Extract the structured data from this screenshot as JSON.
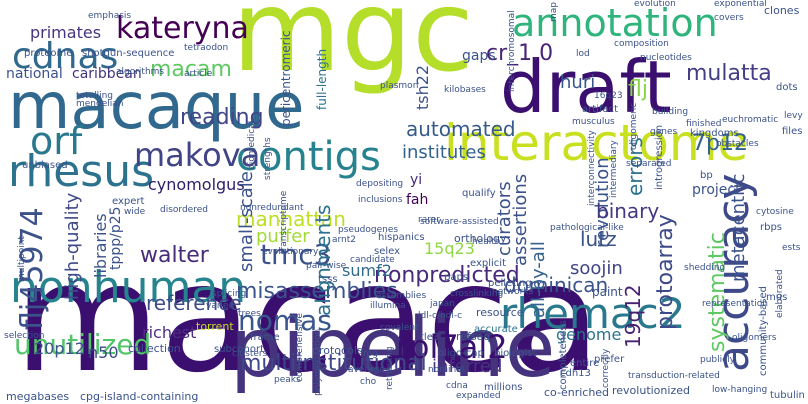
{
  "words": [
    {
      "text": "macaca",
      "color": "#3b0f70"
    },
    {
      "text": "mgc",
      "color": "#b5de2b"
    },
    {
      "text": "pipeline",
      "color": "#46337e"
    },
    {
      "text": "macaque",
      "color": "#31688e"
    },
    {
      "text": "draft",
      "color": "#3b0f70"
    },
    {
      "text": "interactome",
      "color": "#c8e020"
    },
    {
      "text": "annotation",
      "color": "#2fb47c"
    },
    {
      "text": "rhesus",
      "color": "#2c728e"
    },
    {
      "text": "nonhuman",
      "color": "#25848e"
    },
    {
      "text": "rhemac2",
      "color": "#2a788e"
    },
    {
      "text": "contigs",
      "color": "#26828e"
    },
    {
      "text": "accuracy",
      "color": "#3e4989"
    },
    {
      "text": "cdnas",
      "color": "#31688e"
    },
    {
      "text": "kateryna",
      "color": "#440154"
    },
    {
      "text": "makova",
      "color": "#414487"
    },
    {
      "text": "orf",
      "color": "#2a788e"
    },
    {
      "text": "flj45974",
      "color": "#3b528b"
    },
    {
      "text": "rpl7al2",
      "color": "#3b0f70"
    },
    {
      "text": "unutilized",
      "color": "#52c569"
    },
    {
      "text": "nomas",
      "color": "#39568c"
    },
    {
      "text": "tmc3",
      "color": "#3b528b"
    },
    {
      "text": "macam",
      "color": "#5ec962"
    },
    {
      "text": "reading",
      "color": "#404688"
    },
    {
      "text": "cr_1.0",
      "color": "#482475"
    },
    {
      "text": "huri",
      "color": "#38588c"
    },
    {
      "text": "flj",
      "color": "#86d549"
    },
    {
      "text": "mulatta",
      "color": "#433e85"
    },
    {
      "text": "multiinstitutional",
      "color": "#3f4788"
    },
    {
      "text": "misassemblies",
      "color": "#3b528b"
    },
    {
      "text": "nonpredicted",
      "color": "#482878"
    },
    {
      "text": "dominican",
      "color": "#3b528b"
    },
    {
      "text": "protoarray",
      "color": "#3e4a89"
    },
    {
      "text": "automated",
      "color": "#375a8c"
    },
    {
      "text": "institutes",
      "color": "#33628d"
    },
    {
      "text": "revolution",
      "color": "#3a548c"
    },
    {
      "text": "errors",
      "color": "#2c728e"
    },
    {
      "text": "7p12",
      "color": "#33638d"
    },
    {
      "text": "project",
      "color": "#3b528b"
    },
    {
      "text": "cynomolgus",
      "color": "#2d1e6b"
    },
    {
      "text": "manhattan",
      "color": "#bddf26"
    },
    {
      "text": "walter",
      "color": "#472c7a"
    },
    {
      "text": "reference",
      "color": "#3e4a89"
    },
    {
      "text": "richest",
      "color": "#4f2e82"
    },
    {
      "text": "alignments",
      "color": "#2c728e"
    },
    {
      "text": "small-scale",
      "color": "#3b528b"
    },
    {
      "text": "puffer",
      "color": "#a2da37"
    },
    {
      "text": "sumf2",
      "color": "#2f6b8e"
    },
    {
      "text": "15q23",
      "color": "#8fd744"
    },
    {
      "text": "binary",
      "color": "#453882"
    },
    {
      "text": "lutz",
      "color": "#3b528b"
    },
    {
      "text": "soojin",
      "color": "#404588"
    },
    {
      "text": "curators",
      "color": "#3b528b"
    },
    {
      "text": "assertions",
      "color": "#3b528b"
    },
    {
      "text": "all-by-all",
      "color": "#34618d"
    },
    {
      "text": "genome",
      "color": "#2c728e"
    },
    {
      "text": "inferred",
      "color": "#46337e"
    },
    {
      "text": "19q12",
      "color": "#482173"
    },
    {
      "text": "systematic",
      "color": "#5ec962"
    },
    {
      "text": "metacentric",
      "color": "#3b528b"
    },
    {
      "text": "high-quality",
      "color": "#3e4a89"
    },
    {
      "text": "libraries",
      "color": "#3b528b"
    },
    {
      "text": "20p12",
      "color": "#3a548c"
    },
    {
      "text": "n50",
      "color": "#3e4989"
    },
    {
      "text": "primates",
      "color": "#46337e"
    },
    {
      "text": "national",
      "color": "#3b528b"
    },
    {
      "text": "caribbean",
      "color": "#46337e"
    },
    {
      "text": "gaps",
      "color": "#3b528b"
    },
    {
      "text": "tsh22",
      "color": "#3b528b"
    },
    {
      "text": "fah",
      "color": "#440154"
    },
    {
      "text": "yi",
      "color": "#472d7b"
    },
    {
      "text": "tppp/p25",
      "color": "#3b528b"
    },
    {
      "text": "full-length",
      "color": "#2c728e"
    },
    {
      "text": "pericentromeric",
      "color": "#3b528b"
    },
    {
      "text": "megabases",
      "color": "#3b528b"
    },
    {
      "text": "cpg-island-containing",
      "color": "#3b528b"
    },
    {
      "text": "subcohort",
      "color": "#3b528b"
    },
    {
      "text": "collection",
      "color": "#3b528b"
    },
    {
      "text": "torrent",
      "color": "#c2df23"
    },
    {
      "text": "protocols",
      "color": "#3b528b"
    },
    {
      "text": "refseq",
      "color": "#3b528b"
    },
    {
      "text": "resource",
      "color": "#3b528b"
    },
    {
      "text": "accurate",
      "color": "#2c728e"
    },
    {
      "text": "orthology",
      "color": "#3b528b"
    },
    {
      "text": "revolutionized",
      "color": "#3b528b"
    },
    {
      "text": "co-enriched",
      "color": "#3b528b"
    },
    {
      "text": "millions",
      "color": "#3b528b"
    },
    {
      "text": "clones",
      "color": "#3b528b"
    },
    {
      "text": "exponential",
      "color": "#3b528b"
    },
    {
      "text": "evolution",
      "color": "#3b528b"
    },
    {
      "text": "kingdoms",
      "color": "#3b528b"
    },
    {
      "text": "cytosine",
      "color": "#3b528b"
    },
    {
      "text": "rbps",
      "color": "#3b528b"
    },
    {
      "text": "ests",
      "color": "#3b528b"
    },
    {
      "text": "files",
      "color": "#3b528b"
    },
    {
      "text": "dots",
      "color": "#3b528b"
    },
    {
      "text": "proteome",
      "color": "#3b528b"
    },
    {
      "text": "shotgun-sequence",
      "color": "#3b528b"
    },
    {
      "text": "tetraodon",
      "color": "#3b528b"
    },
    {
      "text": "algorithms",
      "color": "#3b528b"
    },
    {
      "text": "article",
      "color": "#3b528b"
    },
    {
      "text": "totalling",
      "color": "#3b528b"
    },
    {
      "text": "mendelian",
      "color": "#3b528b"
    },
    {
      "text": "unbiased",
      "color": "#3b528b"
    },
    {
      "text": "expert",
      "color": "#3b528b"
    },
    {
      "text": "wide",
      "color": "#3b528b"
    },
    {
      "text": "disordered",
      "color": "#3b528b"
    },
    {
      "text": "nonredundant",
      "color": "#3b528b"
    },
    {
      "text": "inclusions",
      "color": "#3b528b"
    },
    {
      "text": "depositing",
      "color": "#3b528b"
    },
    {
      "text": "plasmon",
      "color": "#3b528b"
    },
    {
      "text": "kilobases",
      "color": "#3b528b"
    },
    {
      "text": "artifact",
      "color": "#3b528b"
    },
    {
      "text": "16q23",
      "color": "#3b528b"
    },
    {
      "text": "nucleotides",
      "color": "#3b528b"
    },
    {
      "text": "euchromatic",
      "color": "#3b528b"
    },
    {
      "text": "finished",
      "color": "#3b528b"
    },
    {
      "text": "building",
      "color": "#3b528b"
    },
    {
      "text": "obstacles",
      "color": "#3b528b"
    },
    {
      "text": "qualify",
      "color": "#3b528b"
    },
    {
      "text": "biomedical",
      "color": "#3b528b"
    },
    {
      "text": "strengths",
      "color": "#3b528b"
    },
    {
      "text": "musculus",
      "color": "#3b528b"
    },
    {
      "text": "lod",
      "color": "#3b528b"
    },
    {
      "text": "composition",
      "color": "#3b528b"
    },
    {
      "text": "introgression",
      "color": "#3b528b"
    },
    {
      "text": "separated",
      "color": "#3b528b"
    },
    {
      "text": "intermediary",
      "color": "#3b528b"
    },
    {
      "text": "oligomeric",
      "color": "#3b528b"
    },
    {
      "text": "interconnectivity",
      "color": "#3b528b"
    },
    {
      "text": "pseudogenes",
      "color": "#3b528b"
    },
    {
      "text": "hispanics",
      "color": "#3b528b"
    },
    {
      "text": "selex",
      "color": "#3b528b"
    },
    {
      "text": "rarer",
      "color": "#3b528b"
    },
    {
      "text": "explicit",
      "color": "#3b528b"
    },
    {
      "text": "pelleting",
      "color": "#3b528b"
    },
    {
      "text": "health",
      "color": "#3b528b"
    },
    {
      "text": "software-assisted",
      "color": "#3b528b"
    },
    {
      "text": "pathological-like",
      "color": "#3b528b"
    },
    {
      "text": "arnt2",
      "color": "#3b528b"
    },
    {
      "text": "evolutionary",
      "color": "#3b528b"
    },
    {
      "text": "transcriptome",
      "color": "#3b528b"
    },
    {
      "text": "multipoint",
      "color": "#3b528b"
    },
    {
      "text": "splicing",
      "color": "#3b528b"
    },
    {
      "text": "varied",
      "color": "#3b528b"
    },
    {
      "text": "pair-wise",
      "color": "#3b528b"
    },
    {
      "text": "tsss",
      "color": "#3b528b"
    },
    {
      "text": "assemblies",
      "color": "#3b528b"
    },
    {
      "text": "illumina",
      "color": "#3b528b"
    },
    {
      "text": "paps",
      "color": "#3b528b"
    },
    {
      "text": "crosslinking",
      "color": "#3b528b"
    },
    {
      "text": "networks",
      "color": "#3b528b"
    },
    {
      "text": "paint",
      "color": "#3b528b"
    },
    {
      "text": "shedding",
      "color": "#3b528b"
    },
    {
      "text": "japan",
      "color": "#3b528b"
    },
    {
      "text": "trees",
      "color": "#3b528b"
    },
    {
      "text": "ldl-c/hdl-c",
      "color": "#3b528b"
    },
    {
      "text": "covalent",
      "color": "#3b528b"
    },
    {
      "text": "frog",
      "color": "#3b528b"
    },
    {
      "text": "tle3",
      "color": "#3b528b"
    },
    {
      "text": "biologist",
      "color": "#3b528b"
    },
    {
      "text": "oligo-cap",
      "color": "#3b528b"
    },
    {
      "text": "prefer",
      "color": "#3b528b"
    },
    {
      "text": "publicly",
      "color": "#3b528b"
    },
    {
      "text": "community-based",
      "color": "#3b528b"
    },
    {
      "text": "representation",
      "color": "#3b528b"
    },
    {
      "text": "selection",
      "color": "#3b528b"
    },
    {
      "text": "frame",
      "color": "#3b528b"
    },
    {
      "text": "clusters",
      "color": "#3b528b"
    },
    {
      "text": "average",
      "color": "#3b528b"
    },
    {
      "text": "nominal",
      "color": "#3b528b"
    },
    {
      "text": "entire",
      "color": "#3b528b"
    },
    {
      "text": "completeness",
      "color": "#3b528b"
    },
    {
      "text": "correctly",
      "color": "#3b528b"
    },
    {
      "text": "oligomers",
      "color": "#3b528b"
    },
    {
      "text": "elaborated",
      "color": "#3b528b"
    },
    {
      "text": "cdh13",
      "color": "#3b528b"
    },
    {
      "text": "transduction-related",
      "color": "#3b528b"
    },
    {
      "text": "comprehensive",
      "color": "#3b528b"
    },
    {
      "text": "peaks",
      "color": "#3b528b"
    },
    {
      "text": "polymerization",
      "color": "#3b528b"
    },
    {
      "text": "cho",
      "color": "#3b528b"
    },
    {
      "text": "retrieving",
      "color": "#3b528b"
    },
    {
      "text": "cdna",
      "color": "#3b528b"
    },
    {
      "text": "expanded",
      "color": "#3b528b"
    },
    {
      "text": "candidate",
      "color": "#3b528b"
    },
    {
      "text": "tubulin",
      "color": "#3b528b"
    },
    {
      "text": "low-hanging",
      "color": "#3b528b"
    },
    {
      "text": "emphasis",
      "color": "#3b528b"
    },
    {
      "text": "covers",
      "color": "#3b528b"
    },
    {
      "text": "map",
      "color": "#3b528b"
    },
    {
      "text": "levy",
      "color": "#3b528b"
    },
    {
      "text": "genes",
      "color": "#3b528b"
    },
    {
      "text": "bp",
      "color": "#3b528b"
    },
    {
      "text": "mus",
      "color": "#3b528b"
    },
    {
      "text": "interchromosomal",
      "color": "#3b528b"
    }
  ]
}
